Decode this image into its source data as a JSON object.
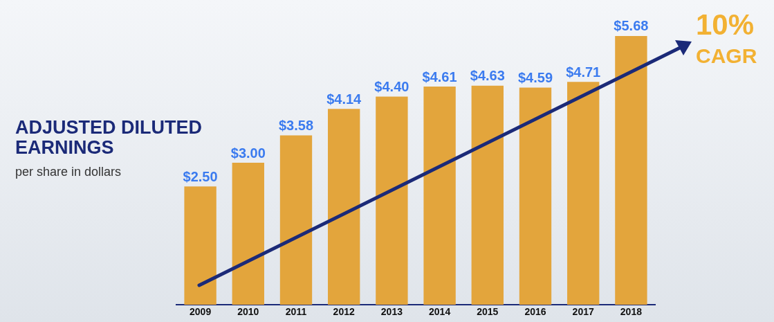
{
  "chart_data": {
    "type": "bar",
    "title": "ADJUSTED DILUTED EARNINGS",
    "subtitle": "per share in dollars",
    "categories": [
      "2009",
      "2010",
      "2011",
      "2012",
      "2013",
      "2014",
      "2015",
      "2016",
      "2017",
      "2018"
    ],
    "values": [
      2.5,
      3.0,
      3.58,
      4.14,
      4.4,
      4.61,
      4.63,
      4.59,
      4.71,
      5.68
    ],
    "value_labels": [
      "$2.50",
      "$3.00",
      "$3.58",
      "$4.14",
      "$4.40",
      "$4.61",
      "$4.63",
      "$4.59",
      "$4.71",
      "$5.68"
    ],
    "color": "#e3a53c",
    "grid": false,
    "legend": false,
    "tick_labels": "x",
    "annotations": [
      "10%",
      "CAGR"
    ]
  }
}
